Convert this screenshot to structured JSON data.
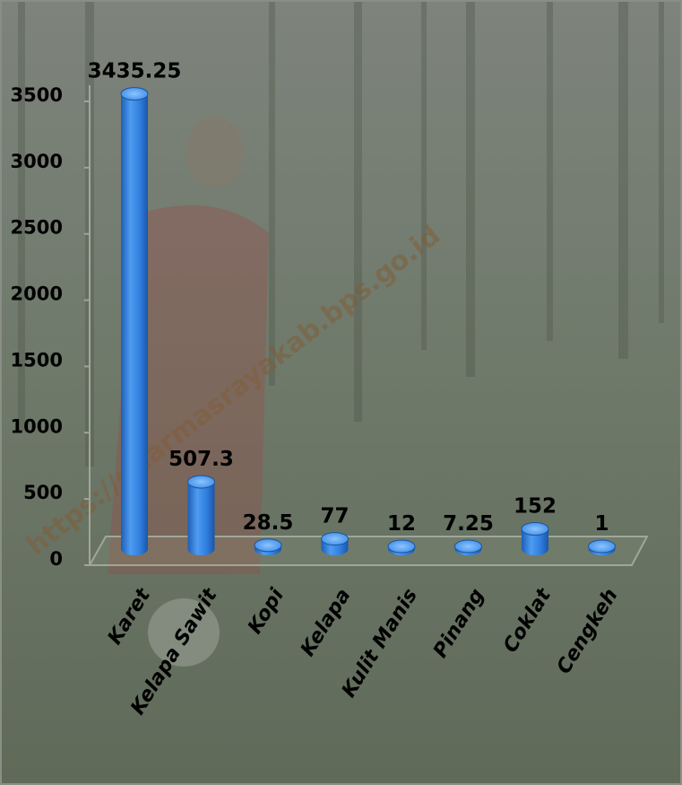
{
  "watermark": "https://dharmasrayakab.bps.go.id",
  "chart_data": {
    "type": "bar",
    "categories": [
      "Karet",
      "Kelapa Sawit",
      "Kopi",
      "Kelapa",
      "Kulit Manis",
      "Pinang",
      "Coklat",
      "Cengkeh"
    ],
    "values": [
      3435.25,
      507.3,
      28.5,
      77,
      12,
      7.25,
      152,
      1
    ],
    "data_labels": [
      "3435.25",
      "507.3",
      "28.5",
      "77",
      "12",
      "7.25",
      "152",
      "1"
    ],
    "y_ticks": [
      "0",
      "500",
      "1000",
      "1500",
      "2000",
      "2500",
      "3000",
      "3500"
    ],
    "ylim": [
      0,
      3500
    ],
    "title": "",
    "xlabel": "",
    "ylabel": "",
    "grid": false,
    "style": "3d-cylinder",
    "bar_color": "#2f7fe0"
  }
}
